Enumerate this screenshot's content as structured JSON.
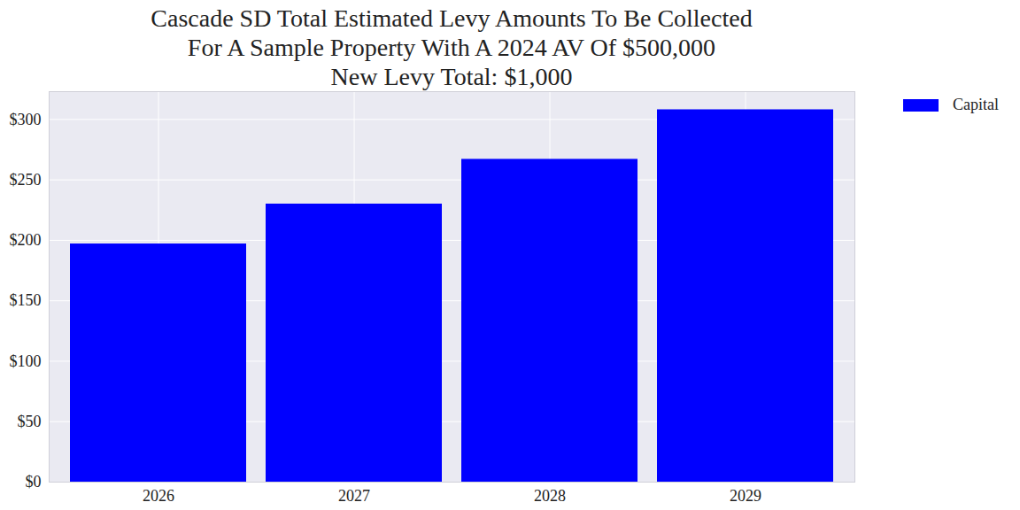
{
  "chart_data": {
    "type": "bar",
    "title": "Cascade SD Total Estimated Levy Amounts To Be Collected\nFor A Sample Property With A 2024 AV Of $500,000\nNew Levy Total: $1,000",
    "categories": [
      "2026",
      "2027",
      "2028",
      "2029"
    ],
    "series": [
      {
        "name": "Capital",
        "color": "#0000ff",
        "values": [
          197,
          230,
          267,
          308
        ]
      }
    ],
    "ylim": [
      0,
      323
    ],
    "yticks": [
      {
        "value": 0,
        "label": "$0"
      },
      {
        "value": 50,
        "label": "$50"
      },
      {
        "value": 100,
        "label": "$100"
      },
      {
        "value": 150,
        "label": "$150"
      },
      {
        "value": 200,
        "label": "$200"
      },
      {
        "value": 250,
        "label": "$250"
      },
      {
        "value": 300,
        "label": "$300"
      }
    ],
    "grid": true,
    "legend": "right"
  }
}
